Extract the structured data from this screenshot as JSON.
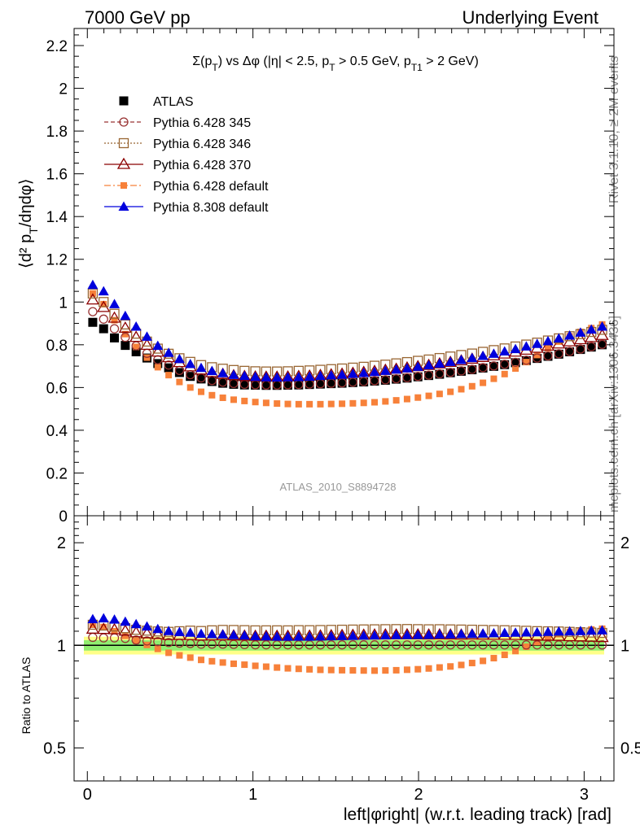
{
  "header": {
    "left": "7000 GeV pp",
    "right": "Underlying Event"
  },
  "side_labels": {
    "rivet": "Rivet 3.1.10, ≥ 2M events",
    "mcplots": "mcplots.cern.ch [arXiv:1306.3436]"
  },
  "analysis_id": "ATLAS_2010_S8894728",
  "colors": {
    "atlas": "#000000",
    "p345": "#993333",
    "p346": "#996633",
    "p370": "#8b0000",
    "p6def": "#f7813a",
    "p8def": "#0000dd",
    "band_inner": "#90ee70",
    "band_outer": "#ffff88"
  },
  "chart_data": [
    {
      "type": "scatter",
      "panel": "main",
      "title": "Σ(p_T) vs Δφ (|η| < 2.5, p_T > 0.5 GeV, p_T1 > 2 GeV)",
      "ylabel": "⟨d² p_T/dηdφ⟩",
      "xlabel": "",
      "xlim": [
        -0.08,
        3.18
      ],
      "ylim": [
        0,
        2.28
      ],
      "yticks": [
        "0",
        "0.2",
        "0.4",
        "0.6",
        "0.8",
        "1",
        "1.2",
        "1.4",
        "1.6",
        "1.8",
        "2",
        "2.2"
      ],
      "legend_position": "top-left",
      "x": [
        0.0327,
        0.0982,
        0.1636,
        0.2291,
        0.2945,
        0.36,
        0.4254,
        0.4909,
        0.5563,
        0.6218,
        0.6872,
        0.7527,
        0.8181,
        0.8836,
        0.949,
        1.0145,
        1.0799,
        1.1454,
        1.2108,
        1.2763,
        1.3417,
        1.4072,
        1.4726,
        1.5381,
        1.6035,
        1.669,
        1.7344,
        1.7999,
        1.8653,
        1.9308,
        1.9962,
        2.0617,
        2.1271,
        2.1926,
        2.258,
        2.3235,
        2.3889,
        2.4544,
        2.5198,
        2.5853,
        2.6507,
        2.7162,
        2.7816,
        2.8471,
        2.9125,
        2.978,
        3.0434,
        3.1089
      ],
      "series": [
        {
          "name": "ATLAS",
          "marker": "square-filled",
          "color": "#000000",
          "values": [
            0.905,
            0.875,
            0.832,
            0.797,
            0.767,
            0.738,
            0.712,
            0.692,
            0.67,
            0.652,
            0.64,
            0.628,
            0.62,
            0.615,
            0.612,
            0.611,
            0.61,
            0.61,
            0.611,
            0.612,
            0.614,
            0.616,
            0.618,
            0.62,
            0.623,
            0.626,
            0.63,
            0.634,
            0.639,
            0.644,
            0.65,
            0.656,
            0.662,
            0.669,
            0.676,
            0.683,
            0.691,
            0.699,
            0.707,
            0.716,
            0.726,
            0.736,
            0.746,
            0.756,
            0.767,
            0.778,
            0.789,
            0.8
          ]
        },
        {
          "name": "Pythia 6.428 345",
          "marker": "circle-open",
          "color": "#993333",
          "values": [
            0.955,
            0.92,
            0.875,
            0.835,
            0.795,
            0.76,
            0.73,
            0.705,
            0.68,
            0.66,
            0.645,
            0.633,
            0.625,
            0.619,
            0.615,
            0.613,
            0.612,
            0.612,
            0.613,
            0.614,
            0.616,
            0.618,
            0.62,
            0.622,
            0.625,
            0.628,
            0.632,
            0.636,
            0.641,
            0.646,
            0.652,
            0.658,
            0.664,
            0.671,
            0.678,
            0.685,
            0.693,
            0.701,
            0.709,
            0.718,
            0.728,
            0.738,
            0.748,
            0.758,
            0.769,
            0.78,
            0.791,
            0.802
          ]
        },
        {
          "name": "Pythia 6.428 346",
          "marker": "square-open",
          "color": "#996633",
          "values": [
            1.04,
            1.0,
            0.945,
            0.895,
            0.852,
            0.815,
            0.782,
            0.758,
            0.737,
            0.72,
            0.705,
            0.695,
            0.688,
            0.682,
            0.678,
            0.676,
            0.675,
            0.675,
            0.676,
            0.678,
            0.68,
            0.683,
            0.686,
            0.689,
            0.693,
            0.697,
            0.702,
            0.707,
            0.713,
            0.719,
            0.725,
            0.731,
            0.738,
            0.745,
            0.752,
            0.759,
            0.767,
            0.775,
            0.783,
            0.792,
            0.801,
            0.81,
            0.82,
            0.83,
            0.84,
            0.85,
            0.86,
            0.87
          ]
        },
        {
          "name": "Pythia 6.428 370",
          "marker": "triangle-open",
          "color": "#8b0000",
          "values": [
            1.01,
            0.975,
            0.925,
            0.878,
            0.835,
            0.798,
            0.766,
            0.74,
            0.717,
            0.697,
            0.682,
            0.67,
            0.662,
            0.656,
            0.652,
            0.65,
            0.649,
            0.649,
            0.65,
            0.652,
            0.654,
            0.657,
            0.66,
            0.663,
            0.667,
            0.671,
            0.676,
            0.681,
            0.686,
            0.692,
            0.698,
            0.704,
            0.711,
            0.718,
            0.725,
            0.733,
            0.741,
            0.749,
            0.757,
            0.766,
            0.775,
            0.784,
            0.794,
            0.804,
            0.814,
            0.824,
            0.834,
            0.844
          ]
        },
        {
          "name": "Pythia 6.428 default",
          "marker": "square-filled-small",
          "color": "#f7813a",
          "values": [
            1.04,
            0.99,
            0.915,
            0.85,
            0.79,
            0.74,
            0.695,
            0.658,
            0.626,
            0.6,
            0.58,
            0.564,
            0.552,
            0.543,
            0.537,
            0.532,
            0.528,
            0.525,
            0.523,
            0.522,
            0.522,
            0.522,
            0.523,
            0.524,
            0.526,
            0.528,
            0.531,
            0.535,
            0.54,
            0.546,
            0.553,
            0.561,
            0.57,
            0.58,
            0.592,
            0.606,
            0.622,
            0.641,
            0.663,
            0.689,
            0.719,
            0.752,
            0.785,
            0.815,
            0.84,
            0.86,
            0.878,
            0.895
          ]
        },
        {
          "name": "Pythia 8.308 default",
          "marker": "triangle-filled",
          "color": "#0000dd",
          "values": [
            1.08,
            1.05,
            0.99,
            0.935,
            0.885,
            0.838,
            0.795,
            0.762,
            0.733,
            0.71,
            0.692,
            0.677,
            0.667,
            0.659,
            0.654,
            0.65,
            0.648,
            0.647,
            0.648,
            0.649,
            0.651,
            0.654,
            0.657,
            0.66,
            0.664,
            0.668,
            0.673,
            0.678,
            0.684,
            0.69,
            0.697,
            0.704,
            0.712,
            0.72,
            0.729,
            0.738,
            0.748,
            0.758,
            0.769,
            0.78,
            0.792,
            0.804,
            0.817,
            0.83,
            0.843,
            0.857,
            0.871,
            0.885
          ]
        }
      ]
    },
    {
      "type": "scatter",
      "panel": "ratio",
      "ylabel": "Ratio to ATLAS",
      "xlabel": "left|φright| (w.r.t. leading track) [rad]",
      "xlim": [
        -0.08,
        3.18
      ],
      "ylim": [
        0.4,
        2.4
      ],
      "ylog": true,
      "yticks": [
        "0.5",
        "1",
        "2"
      ],
      "xticks": [
        "0",
        "1",
        "2",
        "3"
      ],
      "reference": 1.0,
      "band_inner": [
        0.965,
        1.035
      ],
      "band_outer": [
        0.94,
        1.06
      ]
    }
  ]
}
